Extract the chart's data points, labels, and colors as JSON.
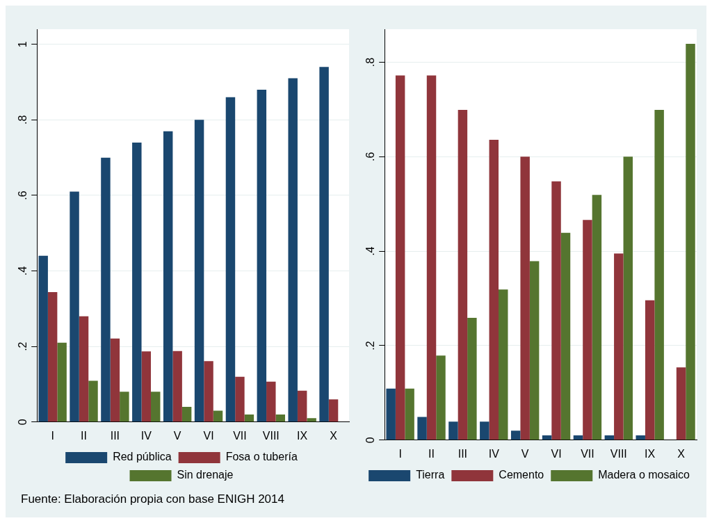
{
  "chart_data": [
    {
      "type": "bar",
      "categories": [
        "I",
        "II",
        "III",
        "IV",
        "V",
        "VI",
        "VII",
        "VIII",
        "IX",
        "X"
      ],
      "series": [
        {
          "name": "Red pública",
          "color": "#1a476f",
          "values": [
            0.44,
            0.61,
            0.7,
            0.74,
            0.77,
            0.8,
            0.86,
            0.88,
            0.91,
            0.94
          ]
        },
        {
          "name": "Fosa o tubería",
          "color": "#90353b",
          "values": [
            0.344,
            0.28,
            0.221,
            0.187,
            0.188,
            0.161,
            0.12,
            0.107,
            0.083,
            0.06
          ]
        },
        {
          "name": "Sin drenaje",
          "color": "#55752f",
          "values": [
            0.21,
            0.109,
            0.08,
            0.08,
            0.04,
            0.03,
            0.02,
            0.02,
            0.01,
            0
          ]
        }
      ],
      "ylim": [
        0,
        1.04
      ],
      "yticks": [
        {
          "value": 0,
          "label": "0"
        },
        {
          "value": 0.2,
          "label": ".2"
        },
        {
          "value": 0.4,
          "label": ".4"
        },
        {
          "value": 0.6,
          "label": ".6"
        },
        {
          "value": 0.8,
          "label": ".8"
        },
        {
          "value": 1,
          "label": "1"
        }
      ],
      "grid": "y",
      "legend": "bottom",
      "annotations": [
        "Fuente: Elaboración propia con base ENIGH 2014"
      ]
    },
    {
      "type": "bar",
      "categories": [
        "I",
        "II",
        "III",
        "IV",
        "V",
        "VI",
        "VII",
        "VIII",
        "IX",
        "X"
      ],
      "series": [
        {
          "name": "Tierra",
          "color": "#1a476f",
          "values": [
            0.109,
            0.049,
            0.039,
            0.039,
            0.02,
            0.01,
            0.01,
            0.01,
            0.01,
            0
          ]
        },
        {
          "name": "Cemento",
          "color": "#90353b",
          "values": [
            0.772,
            0.772,
            0.699,
            0.636,
            0.6,
            0.548,
            0.466,
            0.395,
            0.296,
            0.154
          ]
        },
        {
          "name": "Madera o mosaico",
          "color": "#55752f",
          "values": [
            0.109,
            0.179,
            0.259,
            0.319,
            0.379,
            0.439,
            0.519,
            0.6,
            0.699,
            0.839
          ]
        }
      ],
      "ylim": [
        0,
        0.87
      ],
      "yticks": [
        {
          "value": 0,
          "label": "0"
        },
        {
          "value": 0.2,
          "label": ".2"
        },
        {
          "value": 0.4,
          "label": ".4"
        },
        {
          "value": 0.6,
          "label": ".6"
        },
        {
          "value": 0.8,
          "label": ".8"
        }
      ],
      "grid": "y",
      "legend": "bottom"
    }
  ]
}
